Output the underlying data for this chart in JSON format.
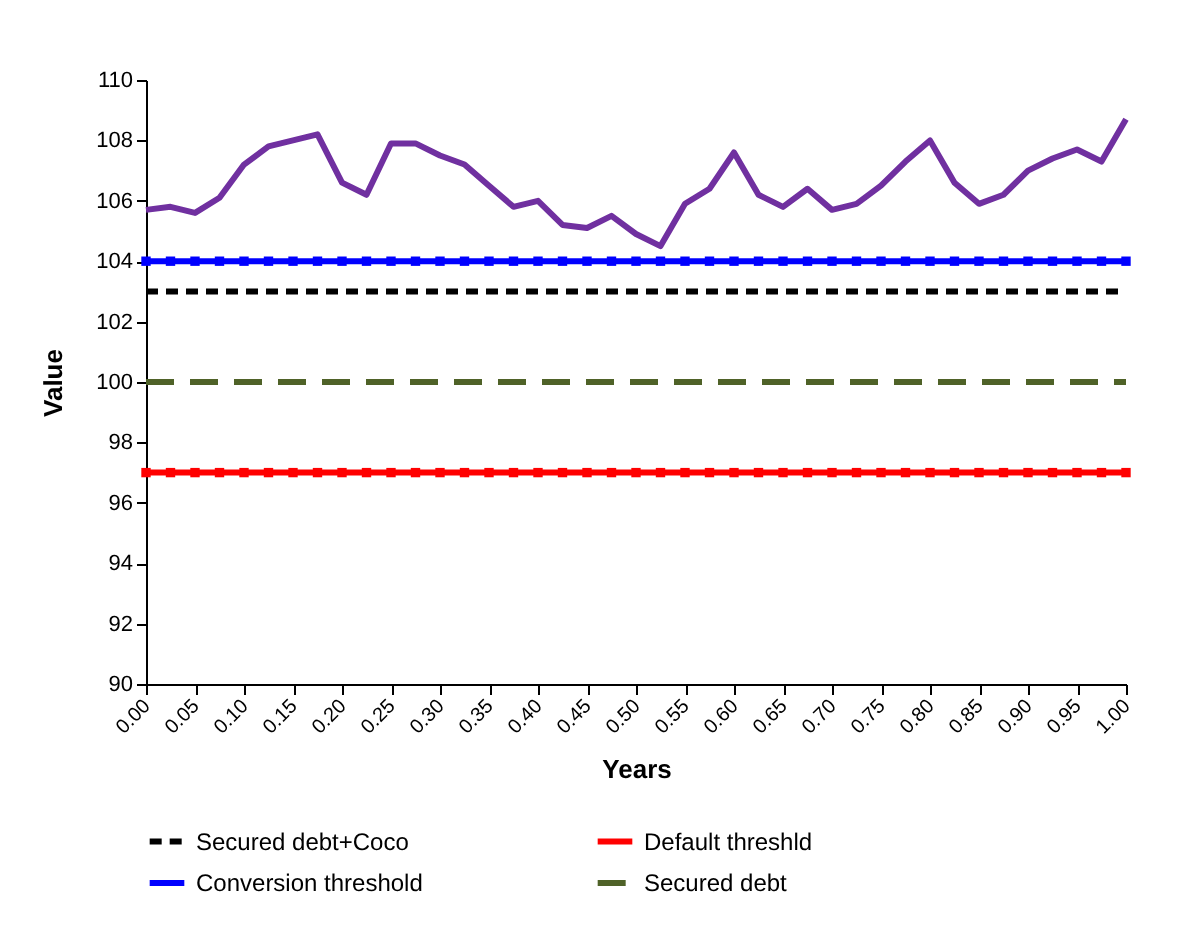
{
  "chart_data": {
    "type": "line",
    "xlabel": "Years",
    "ylabel": "Value",
    "x": [
      0,
      0.025,
      0.05,
      0.075,
      0.1,
      0.125,
      0.15,
      0.175,
      0.2,
      0.225,
      0.25,
      0.275,
      0.3,
      0.325,
      0.35,
      0.375,
      0.4,
      0.425,
      0.45,
      0.475,
      0.5,
      0.525,
      0.55,
      0.575,
      0.6,
      0.625,
      0.65,
      0.675,
      0.7,
      0.725,
      0.75,
      0.775,
      0.8,
      0.825,
      0.85,
      0.875,
      0.9,
      0.925,
      0.95,
      0.975,
      1
    ],
    "series": [
      {
        "color": "#7030a0",
        "values": [
          105.7,
          105.8,
          105.6,
          106.1,
          107.2,
          107.8,
          108.0,
          108.2,
          106.6,
          106.2,
          107.9,
          107.9,
          107.5,
          107.2,
          106.5,
          105.8,
          106.0,
          105.2,
          105.1,
          105.5,
          104.9,
          104.5,
          105.9,
          106.4,
          107.6,
          106.2,
          105.8,
          106.4,
          105.7,
          105.9,
          106.5,
          107.3,
          108.0,
          106.6,
          105.9,
          106.2,
          107.0,
          107.4,
          107.7,
          107.3,
          108.7
        ]
      },
      {
        "name": "Secured debt+Coco",
        "color": "#000000",
        "line_style": "dashed",
        "values": [
          103,
          103,
          103,
          103,
          103,
          103,
          103,
          103,
          103,
          103,
          103,
          103,
          103,
          103,
          103,
          103,
          103,
          103,
          103,
          103,
          103,
          103,
          103,
          103,
          103,
          103,
          103,
          103,
          103,
          103,
          103,
          103,
          103,
          103,
          103,
          103,
          103,
          103,
          103,
          103,
          103
        ]
      },
      {
        "name": "Default threshld",
        "color": "#ff0000",
        "marker": "square",
        "values": [
          97,
          97,
          97,
          97,
          97,
          97,
          97,
          97,
          97,
          97,
          97,
          97,
          97,
          97,
          97,
          97,
          97,
          97,
          97,
          97,
          97,
          97,
          97,
          97,
          97,
          97,
          97,
          97,
          97,
          97,
          97,
          97,
          97,
          97,
          97,
          97,
          97,
          97,
          97,
          97,
          97
        ]
      },
      {
        "name": "Conversion threshold",
        "color": "#0000ff",
        "marker": "square",
        "values": [
          104,
          104,
          104,
          104,
          104,
          104,
          104,
          104,
          104,
          104,
          104,
          104,
          104,
          104,
          104,
          104,
          104,
          104,
          104,
          104,
          104,
          104,
          104,
          104,
          104,
          104,
          104,
          104,
          104,
          104,
          104,
          104,
          104,
          104,
          104,
          104,
          104,
          104,
          104,
          104,
          104
        ]
      },
      {
        "name": "Secured debt",
        "color": "#4f6228",
        "line_style": "longdash",
        "values": [
          100,
          100,
          100,
          100,
          100,
          100,
          100,
          100,
          100,
          100,
          100,
          100,
          100,
          100,
          100,
          100,
          100,
          100,
          100,
          100,
          100,
          100,
          100,
          100,
          100,
          100,
          100,
          100,
          100,
          100,
          100,
          100,
          100,
          100,
          100,
          100,
          100,
          100,
          100,
          100,
          100
        ]
      }
    ],
    "xlim": [
      0,
      1
    ],
    "xticks": [
      {
        "value": 0,
        "label": "0.00"
      },
      {
        "value": 0.05,
        "label": "0.05"
      },
      {
        "value": 0.1,
        "label": "0.10"
      },
      {
        "value": 0.15,
        "label": "0.15"
      },
      {
        "value": 0.2,
        "label": "0.20"
      },
      {
        "value": 0.25,
        "label": "0.25"
      },
      {
        "value": 0.3,
        "label": "0.30"
      },
      {
        "value": 0.35,
        "label": "0.35"
      },
      {
        "value": 0.4,
        "label": "0.40"
      },
      {
        "value": 0.45,
        "label": "0.45"
      },
      {
        "value": 0.5,
        "label": "0.50"
      },
      {
        "value": 0.55,
        "label": "0.55"
      },
      {
        "value": 0.6,
        "label": "0.60"
      },
      {
        "value": 0.65,
        "label": "0.65"
      },
      {
        "value": 0.7,
        "label": "0.70"
      },
      {
        "value": 0.75,
        "label": "0.75"
      },
      {
        "value": 0.8,
        "label": "0.80"
      },
      {
        "value": 0.85,
        "label": "0.85"
      },
      {
        "value": 0.9,
        "label": "0.90"
      },
      {
        "value": 0.95,
        "label": "0.95"
      },
      {
        "value": 1,
        "label": "1.00"
      }
    ],
    "ylim": [
      90,
      110
    ],
    "yticks": [
      90,
      92,
      94,
      96,
      98,
      100,
      102,
      104,
      106,
      108,
      110
    ],
    "grid": false,
    "legend": "bottom"
  }
}
